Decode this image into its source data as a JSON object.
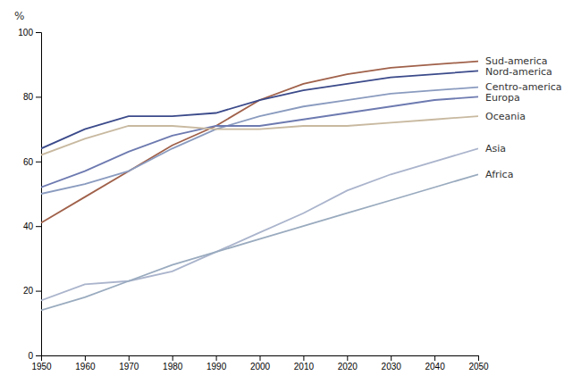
{
  "chart_data": {
    "type": "line",
    "ylabel": "%",
    "x": [
      1950,
      1960,
      1970,
      1980,
      1990,
      2000,
      2010,
      2020,
      2030,
      2040,
      2050
    ],
    "xlim": [
      1950,
      2050
    ],
    "ylim": [
      0,
      100
    ],
    "xticks": [
      1950,
      1960,
      1970,
      1980,
      1990,
      2000,
      2010,
      2020,
      2030,
      2040,
      2050
    ],
    "yticks": [
      0,
      20,
      40,
      60,
      80,
      100
    ],
    "grid": false,
    "series": [
      {
        "name": "Sud-america",
        "color": "#a0614a",
        "values": [
          41,
          49,
          57,
          65,
          71,
          79,
          84,
          87,
          89,
          90,
          91
        ]
      },
      {
        "name": "Nord-america",
        "color": "#3b4a8a",
        "values": [
          64,
          70,
          74,
          74,
          75,
          79,
          82,
          84,
          86,
          87,
          88
        ]
      },
      {
        "name": "Centro-america",
        "color": "#8a9bbf",
        "values": [
          50,
          53,
          57,
          64,
          70,
          74,
          77,
          79,
          81,
          82,
          83
        ]
      },
      {
        "name": "Europa",
        "color": "#6d7ab0",
        "values": [
          52,
          57,
          63,
          68,
          71,
          71,
          73,
          75,
          77,
          79,
          80
        ]
      },
      {
        "name": "Oceania",
        "color": "#c8b9a0",
        "values": [
          62,
          67,
          71,
          71,
          70,
          70,
          71,
          71,
          72,
          73,
          74
        ]
      },
      {
        "name": "Asia",
        "color": "#aab4cc",
        "values": [
          17,
          22,
          23,
          26,
          32,
          38,
          44,
          51,
          56,
          60,
          64
        ]
      },
      {
        "name": "Africa",
        "color": "#9aabbf",
        "values": [
          14,
          18,
          23,
          28,
          32,
          36,
          40,
          44,
          48,
          52,
          56
        ]
      }
    ]
  }
}
